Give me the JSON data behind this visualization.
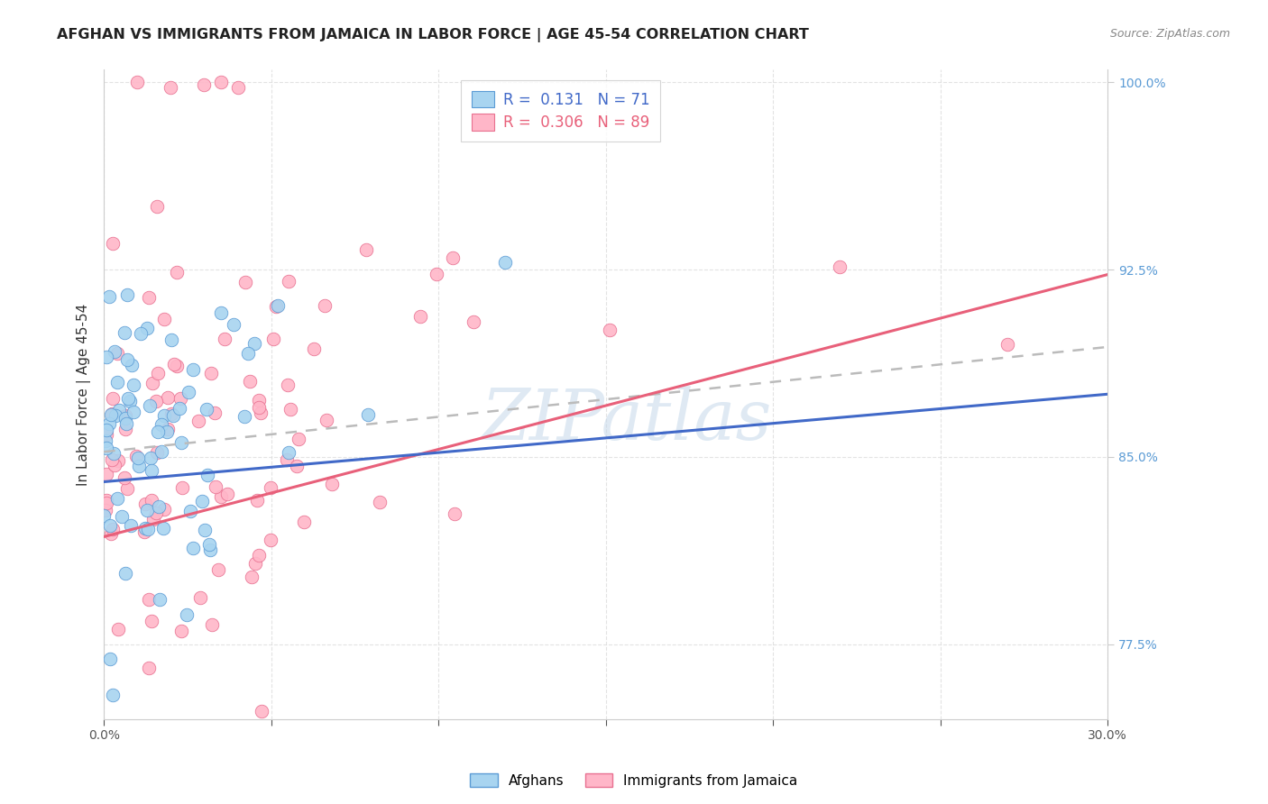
{
  "title": "AFGHAN VS IMMIGRANTS FROM JAMAICA IN LABOR FORCE | AGE 45-54 CORRELATION CHART",
  "source": "Source: ZipAtlas.com",
  "ylabel": "In Labor Force | Age 45-54",
  "xlim": [
    0.0,
    0.3
  ],
  "ylim": [
    0.745,
    1.005
  ],
  "blue_R": 0.131,
  "blue_N": 71,
  "pink_R": 0.306,
  "pink_N": 89,
  "blue_color": "#a8d4f0",
  "pink_color": "#ffb6c8",
  "blue_edge_color": "#5b9bd5",
  "pink_edge_color": "#e87090",
  "blue_line_color": "#4169c8",
  "pink_line_color": "#e8607a",
  "blue_dash_color": "#aaaaaa",
  "legend_label_blue": "Afghans",
  "legend_label_pink": "Immigrants from Jamaica",
  "watermark": "ZIPatlas",
  "tick_color": "#5b9bd5",
  "grid_color": "#dddddd",
  "background_color": "#ffffff",
  "title_fontsize": 11.5,
  "axis_fontsize": 11,
  "tick_fontsize": 10,
  "legend_fontsize": 12
}
